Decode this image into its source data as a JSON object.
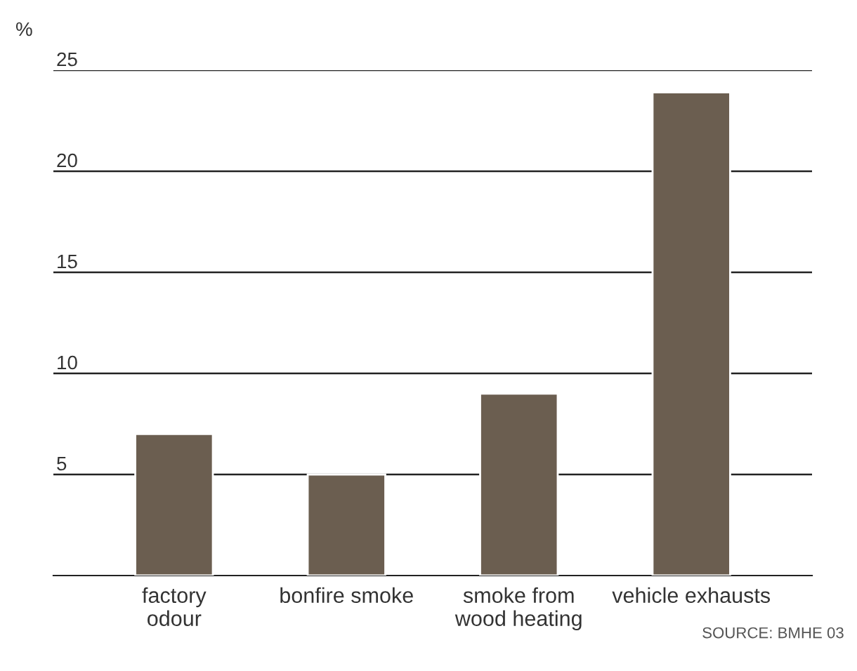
{
  "chart_data": {
    "type": "bar",
    "ylabel": "%",
    "categories": [
      "factory\nodour",
      "bonfire smoke",
      "smoke from\nwood heating",
      "vehicle exhausts"
    ],
    "values": [
      7,
      5,
      9,
      23.9
    ],
    "color": "#6b5e50",
    "ylim": [
      0,
      25
    ],
    "yticks": [
      5,
      10,
      15,
      20,
      25
    ],
    "grid": "y",
    "annotations": [
      "SOURCE: BMHE 03"
    ]
  }
}
